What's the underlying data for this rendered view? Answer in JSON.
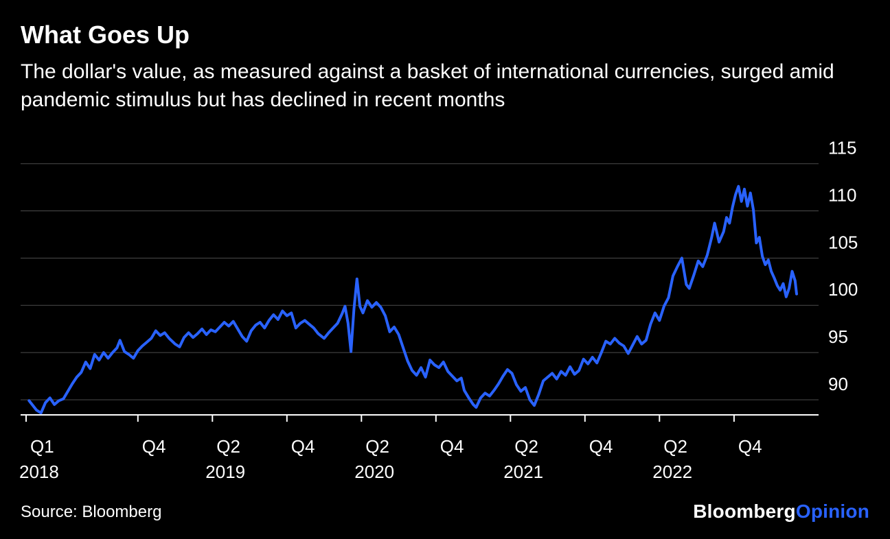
{
  "header": {
    "title": "What Goes Up",
    "subtitle": "The dollar's value, as measured against a basket of international currencies, surged amid pandemic stimulus but has declined in recent months"
  },
  "footer": {
    "source": "Source: Bloomberg",
    "brand": "Bloomberg",
    "brand_suffix": "Opinion"
  },
  "colors": {
    "background": "#000000",
    "text": "#ffffff",
    "line": "#2962ff",
    "grid": "#4d4d4d",
    "axis": "#ffffff",
    "accent": "#2962ff"
  },
  "chart_data": {
    "type": "line",
    "title": "What Goes Up",
    "subtitle": "The dollar's value, as measured against a basket of international currencies, surged amid pandemic stimulus but has declined in recent months",
    "source": "Source: Bloomberg",
    "x_unit": "decimal_year",
    "xlim": [
      2018.0,
      2023.17
    ],
    "ylim": [
      88.4,
      116.5
    ],
    "yticks": [
      90,
      95,
      100,
      105,
      110,
      115
    ],
    "grid": "horizontal",
    "legend": "none",
    "y_axis_side": "right",
    "xticks": [
      {
        "label": "Q1",
        "year": "2018",
        "t": 2018.0
      },
      {
        "label": "Q4",
        "t": 2018.75
      },
      {
        "label": "Q2",
        "year": "2019",
        "t": 2019.25
      },
      {
        "label": "Q4",
        "t": 2019.75
      },
      {
        "label": "Q2",
        "year": "2020",
        "t": 2020.25
      },
      {
        "label": "Q4",
        "t": 2020.75
      },
      {
        "label": "Q2",
        "year": "2021",
        "t": 2021.25
      },
      {
        "label": "Q4",
        "t": 2021.75
      },
      {
        "label": "Q2",
        "year": "2022",
        "t": 2022.25
      },
      {
        "label": "Q4",
        "t": 2022.75
      }
    ],
    "points": [
      [
        2018.02,
        89.9
      ],
      [
        2018.05,
        89.3
      ],
      [
        2018.07,
        88.9
      ],
      [
        2018.1,
        88.6
      ],
      [
        2018.13,
        89.7
      ],
      [
        2018.16,
        90.2
      ],
      [
        2018.19,
        89.5
      ],
      [
        2018.22,
        89.9
      ],
      [
        2018.25,
        90.1
      ],
      [
        2018.28,
        90.9
      ],
      [
        2018.31,
        91.7
      ],
      [
        2018.34,
        92.4
      ],
      [
        2018.37,
        92.9
      ],
      [
        2018.4,
        94.0
      ],
      [
        2018.43,
        93.3
      ],
      [
        2018.46,
        94.8
      ],
      [
        2018.49,
        94.2
      ],
      [
        2018.52,
        95.0
      ],
      [
        2018.55,
        94.4
      ],
      [
        2018.58,
        95.0
      ],
      [
        2018.61,
        95.5
      ],
      [
        2018.63,
        96.3
      ],
      [
        2018.66,
        95.1
      ],
      [
        2018.69,
        94.8
      ],
      [
        2018.72,
        94.4
      ],
      [
        2018.75,
        95.2
      ],
      [
        2018.78,
        95.7
      ],
      [
        2018.81,
        96.1
      ],
      [
        2018.84,
        96.5
      ],
      [
        2018.87,
        97.3
      ],
      [
        2018.9,
        96.8
      ],
      [
        2018.93,
        97.1
      ],
      [
        2018.96,
        96.5
      ],
      [
        2019.0,
        95.9
      ],
      [
        2019.03,
        95.6
      ],
      [
        2019.06,
        96.6
      ],
      [
        2019.09,
        97.1
      ],
      [
        2019.12,
        96.6
      ],
      [
        2019.15,
        97.0
      ],
      [
        2019.18,
        97.5
      ],
      [
        2019.21,
        96.9
      ],
      [
        2019.24,
        97.4
      ],
      [
        2019.27,
        97.2
      ],
      [
        2019.3,
        97.7
      ],
      [
        2019.33,
        98.2
      ],
      [
        2019.36,
        97.8
      ],
      [
        2019.39,
        98.3
      ],
      [
        2019.42,
        97.5
      ],
      [
        2019.45,
        96.7
      ],
      [
        2019.48,
        96.2
      ],
      [
        2019.51,
        97.3
      ],
      [
        2019.54,
        97.9
      ],
      [
        2019.57,
        98.2
      ],
      [
        2019.6,
        97.6
      ],
      [
        2019.63,
        98.4
      ],
      [
        2019.66,
        99.0
      ],
      [
        2019.69,
        98.5
      ],
      [
        2019.72,
        99.4
      ],
      [
        2019.75,
        98.9
      ],
      [
        2019.78,
        99.2
      ],
      [
        2019.81,
        97.6
      ],
      [
        2019.84,
        98.1
      ],
      [
        2019.87,
        98.4
      ],
      [
        2019.9,
        98.0
      ],
      [
        2019.93,
        97.6
      ],
      [
        2019.96,
        97.0
      ],
      [
        2020.0,
        96.5
      ],
      [
        2020.03,
        97.1
      ],
      [
        2020.06,
        97.6
      ],
      [
        2020.09,
        98.1
      ],
      [
        2020.12,
        99.1
      ],
      [
        2020.14,
        99.9
      ],
      [
        2020.16,
        98.1
      ],
      [
        2020.18,
        95.1
      ],
      [
        2020.2,
        99.6
      ],
      [
        2020.22,
        102.8
      ],
      [
        2020.24,
        99.9
      ],
      [
        2020.26,
        99.2
      ],
      [
        2020.29,
        100.5
      ],
      [
        2020.32,
        99.8
      ],
      [
        2020.35,
        100.3
      ],
      [
        2020.38,
        99.8
      ],
      [
        2020.41,
        98.9
      ],
      [
        2020.44,
        97.2
      ],
      [
        2020.47,
        97.7
      ],
      [
        2020.5,
        96.9
      ],
      [
        2020.53,
        95.5
      ],
      [
        2020.56,
        94.1
      ],
      [
        2020.59,
        93.1
      ],
      [
        2020.62,
        92.6
      ],
      [
        2020.65,
        93.4
      ],
      [
        2020.68,
        92.4
      ],
      [
        2020.71,
        94.2
      ],
      [
        2020.74,
        93.7
      ],
      [
        2020.77,
        93.4
      ],
      [
        2020.8,
        94.0
      ],
      [
        2020.83,
        93.0
      ],
      [
        2020.86,
        92.5
      ],
      [
        2020.89,
        92.0
      ],
      [
        2020.92,
        92.3
      ],
      [
        2020.94,
        91.0
      ],
      [
        2020.97,
        90.2
      ],
      [
        2021.0,
        89.5
      ],
      [
        2021.02,
        89.2
      ],
      [
        2021.05,
        90.2
      ],
      [
        2021.08,
        90.7
      ],
      [
        2021.11,
        90.4
      ],
      [
        2021.14,
        91.0
      ],
      [
        2021.17,
        91.7
      ],
      [
        2021.2,
        92.5
      ],
      [
        2021.23,
        93.2
      ],
      [
        2021.26,
        92.8
      ],
      [
        2021.29,
        91.6
      ],
      [
        2021.32,
        90.9
      ],
      [
        2021.35,
        91.3
      ],
      [
        2021.38,
        90.0
      ],
      [
        2021.41,
        89.4
      ],
      [
        2021.44,
        90.6
      ],
      [
        2021.47,
        92.0
      ],
      [
        2021.5,
        92.4
      ],
      [
        2021.53,
        92.8
      ],
      [
        2021.56,
        92.2
      ],
      [
        2021.59,
        93.0
      ],
      [
        2021.62,
        92.6
      ],
      [
        2021.65,
        93.5
      ],
      [
        2021.68,
        92.7
      ],
      [
        2021.71,
        93.1
      ],
      [
        2021.74,
        94.3
      ],
      [
        2021.77,
        93.8
      ],
      [
        2021.8,
        94.5
      ],
      [
        2021.83,
        93.9
      ],
      [
        2021.86,
        95.0
      ],
      [
        2021.89,
        96.2
      ],
      [
        2021.92,
        95.9
      ],
      [
        2021.95,
        96.5
      ],
      [
        2021.98,
        96.0
      ],
      [
        2022.01,
        95.7
      ],
      [
        2022.04,
        94.9
      ],
      [
        2022.07,
        95.8
      ],
      [
        2022.1,
        96.7
      ],
      [
        2022.13,
        95.9
      ],
      [
        2022.16,
        96.3
      ],
      [
        2022.19,
        98.0
      ],
      [
        2022.22,
        99.2
      ],
      [
        2022.25,
        98.4
      ],
      [
        2022.28,
        99.9
      ],
      [
        2022.31,
        100.8
      ],
      [
        2022.34,
        103.1
      ],
      [
        2022.37,
        104.1
      ],
      [
        2022.4,
        105.0
      ],
      [
        2022.43,
        102.2
      ],
      [
        2022.45,
        101.8
      ],
      [
        2022.48,
        103.2
      ],
      [
        2022.51,
        104.7
      ],
      [
        2022.54,
        104.1
      ],
      [
        2022.57,
        105.3
      ],
      [
        2022.6,
        107.2
      ],
      [
        2022.62,
        108.7
      ],
      [
        2022.65,
        106.7
      ],
      [
        2022.68,
        107.8
      ],
      [
        2022.7,
        109.3
      ],
      [
        2022.72,
        108.7
      ],
      [
        2022.74,
        110.4
      ],
      [
        2022.76,
        111.7
      ],
      [
        2022.78,
        112.6
      ],
      [
        2022.8,
        111.0
      ],
      [
        2022.82,
        112.3
      ],
      [
        2022.84,
        110.5
      ],
      [
        2022.86,
        111.9
      ],
      [
        2022.88,
        110.1
      ],
      [
        2022.9,
        106.6
      ],
      [
        2022.92,
        107.2
      ],
      [
        2022.94,
        105.2
      ],
      [
        2022.96,
        104.3
      ],
      [
        2022.98,
        104.8
      ],
      [
        2023.0,
        103.6
      ],
      [
        2023.02,
        102.9
      ],
      [
        2023.04,
        102.1
      ],
      [
        2023.06,
        101.6
      ],
      [
        2023.08,
        102.3
      ],
      [
        2023.1,
        100.9
      ],
      [
        2023.12,
        101.8
      ],
      [
        2023.14,
        103.6
      ],
      [
        2023.16,
        102.6
      ],
      [
        2023.17,
        101.2
      ]
    ]
  }
}
